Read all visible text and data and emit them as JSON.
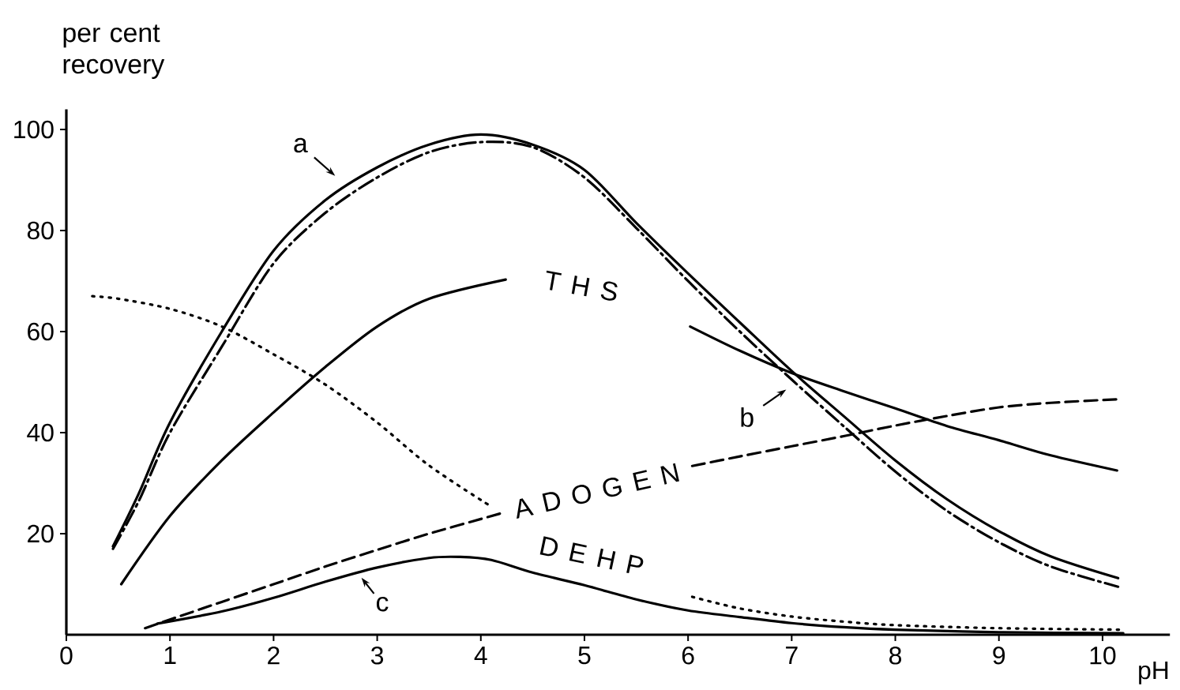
{
  "chart_data": {
    "type": "line",
    "xlabel": "pH",
    "ylabel": "per cent recovery",
    "xlim": [
      0,
      10.65
    ],
    "ylim": [
      0,
      104
    ],
    "xticks": [
      0,
      1,
      2,
      3,
      4,
      5,
      6,
      7,
      8,
      9,
      10
    ],
    "yticks": [
      20,
      40,
      60,
      80,
      100
    ],
    "series": [
      {
        "color": "#000000",
        "line_style": "solid",
        "x": [
          0.45,
          0.7,
          1.0,
          1.5,
          2.0,
          2.5,
          3.0,
          3.5,
          4.0,
          4.5,
          5.0,
          5.5,
          6.0,
          6.5,
          7.0,
          7.5,
          8.0,
          8.5,
          9.0,
          9.5,
          10.15
        ],
        "values": [
          17.5,
          28,
          42,
          60,
          76,
          86,
          92.5,
          97,
          99,
          97,
          92,
          81.5,
          71.5,
          61.8,
          52.2,
          43.3,
          34.5,
          26.8,
          20.5,
          15.5,
          11.2
        ]
      },
      {
        "color": "#000000",
        "line_style": "dashdot",
        "x": [
          0.45,
          0.7,
          1.0,
          1.5,
          2.0,
          2.5,
          3.0,
          3.5,
          4.0,
          4.5,
          5.0,
          5.5,
          6.0,
          6.5,
          7.0,
          7.5,
          8.0,
          8.5,
          9.0,
          9.5,
          10.15
        ],
        "values": [
          17,
          26.5,
          40,
          57,
          73.5,
          83.5,
          90.5,
          95.5,
          97.5,
          96.5,
          90.5,
          80.5,
          70,
          60,
          50.5,
          41.3,
          32.3,
          24.5,
          18.3,
          13.5,
          9.5
        ]
      },
      {
        "name": "T H S",
        "color": "#000000",
        "line_style": "solid",
        "x": [
          0.53,
          1.0,
          1.5,
          2.0,
          2.5,
          3.0,
          3.5,
          4.24
        ],
        "values": [
          10,
          23.5,
          34.5,
          44,
          53,
          61,
          66.5,
          70.3
        ]
      },
      {
        "color": "#000000",
        "line_style": "solid",
        "x": [
          6.02,
          6.5,
          7.0,
          7.5,
          8.0,
          8.5,
          9.0,
          9.5,
          10.14
        ],
        "values": [
          61,
          56.2,
          51.8,
          48.2,
          44.8,
          41.3,
          38.5,
          35.5,
          32.5
        ]
      },
      {
        "name": "A D O G E N",
        "color": "#000000",
        "line_style": "dashed",
        "x": [
          0.76,
          1.0,
          1.5,
          2.0,
          2.5,
          3.0,
          3.5,
          4.19,
          5.1,
          6.04,
          6.5,
          7.0,
          7.5,
          8.0,
          8.5,
          9.0,
          9.5,
          10.14
        ],
        "values": [
          1.3,
          3,
          6.5,
          10,
          13.5,
          16.8,
          20,
          24,
          null,
          33.4,
          35.3,
          37.3,
          39.3,
          41.4,
          43.3,
          45,
          45.9,
          46.6
        ]
      },
      {
        "name": "D E H P",
        "color": "#000000",
        "line_style": "solid",
        "x": [
          0.88,
          1.5,
          2.0,
          2.5,
          3.0,
          3.5,
          3.8,
          4.1,
          4.5,
          5.0,
          5.5,
          6.0,
          6.5,
          7.0,
          7.5,
          8.0,
          9.0,
          10.2
        ],
        "values": [
          2.2,
          4.6,
          7.3,
          10.5,
          13.3,
          15.2,
          15.4,
          14.8,
          12.3,
          9.8,
          7,
          4.8,
          3.5,
          2.3,
          1.5,
          1,
          0.5,
          0.3
        ]
      },
      {
        "color": "#000000",
        "line_style": "dotted",
        "x": [
          0.25,
          0.5,
          1.0,
          1.5,
          2.0,
          2.5,
          3.0,
          3.5,
          4.09,
          5.0,
          6.04,
          6.5,
          7.0,
          7.5,
          8.0,
          9.0,
          10.2
        ],
        "values": [
          67,
          66.5,
          64.5,
          61,
          55.5,
          49.5,
          42,
          33.5,
          25.5,
          null,
          7.5,
          5.2,
          3.6,
          2.6,
          1.9,
          1.3,
          1.0
        ]
      }
    ],
    "annotations": [
      {
        "text": "a",
        "x": 2.64,
        "y": 90
      },
      {
        "text": "b",
        "x": 6.98,
        "y": 49
      },
      {
        "text": "c",
        "x": 2.82,
        "y": 12
      }
    ]
  }
}
